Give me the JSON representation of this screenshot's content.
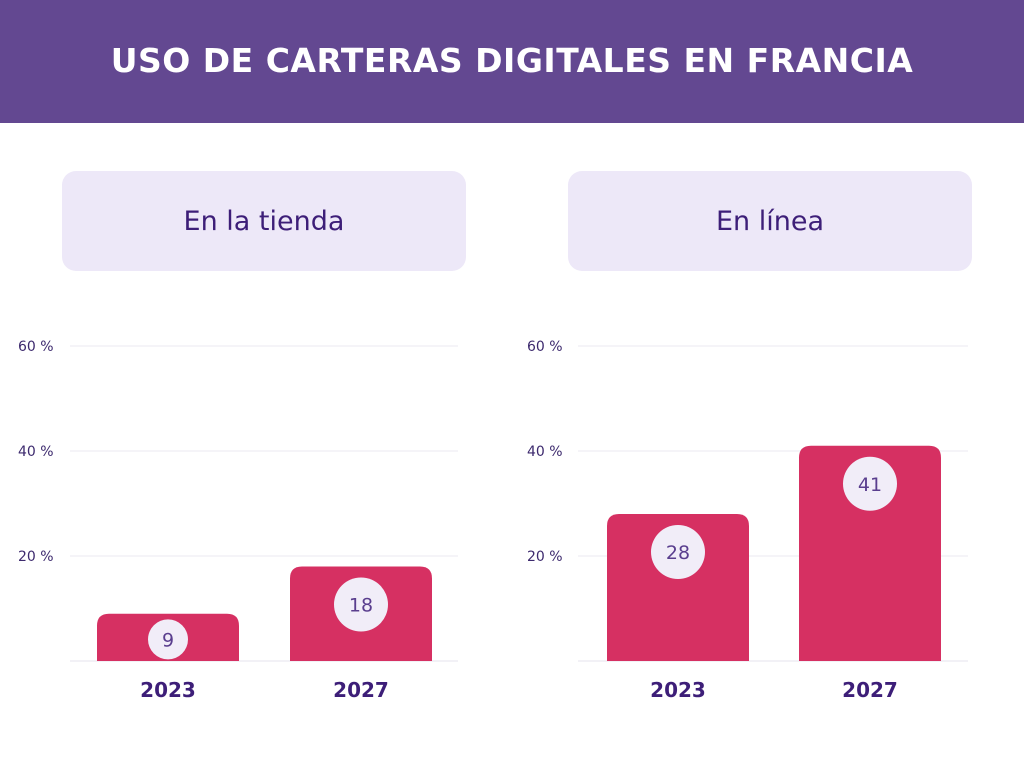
{
  "header": {
    "title": "USO DE CARTERAS DIGITALES EN FRANCIA"
  },
  "colors": {
    "header_bg": "#634891",
    "bar": "#d63062",
    "label_bg": "#ede8f8",
    "text": "#3d1e78"
  },
  "chart_data": [
    {
      "type": "bar",
      "title": "En la tienda",
      "categories": [
        "2023",
        "2027"
      ],
      "values": [
        9,
        18
      ],
      "ylim": [
        0,
        60
      ],
      "yticks": [
        20,
        40,
        60
      ],
      "ytick_labels": [
        "20 %",
        "40 %",
        "60 %"
      ],
      "xlabel": "",
      "ylabel": ""
    },
    {
      "type": "bar",
      "title": "En línea",
      "categories": [
        "2023",
        "2027"
      ],
      "values": [
        28,
        41
      ],
      "ylim": [
        0,
        60
      ],
      "yticks": [
        20,
        40,
        60
      ],
      "ytick_labels": [
        "20 %",
        "40 %",
        "60 %"
      ],
      "xlabel": "",
      "ylabel": ""
    }
  ]
}
